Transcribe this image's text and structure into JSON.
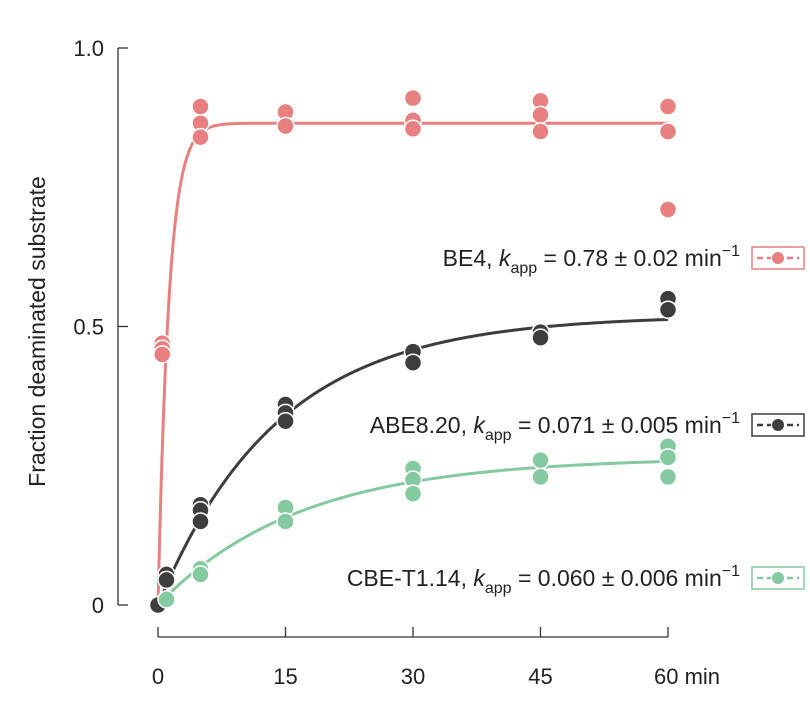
{
  "chart_data": {
    "type": "scatter",
    "title": "",
    "ylabel": "Fraction deaminated substrate",
    "xlabel": "",
    "x_unit": "min",
    "xlim": [
      0,
      60
    ],
    "ylim": [
      0,
      1.0
    ],
    "x_ticks": [
      0,
      15,
      30,
      45,
      60
    ],
    "x_tick_labels": [
      "0",
      "15",
      "30",
      "45",
      "60 min"
    ],
    "y_ticks": [
      0,
      0.5,
      1.0
    ],
    "y_tick_labels": [
      "0",
      "0.5",
      "1.0"
    ],
    "grid": false,
    "legend_position": "right, inline with curves",
    "series": [
      {
        "name": "BE4",
        "kapp_label": "BE4, ",
        "kapp_value": " = 0.78 ± 0.02 min",
        "color": "#e88080",
        "k": 0.78,
        "plateau": 0.865,
        "points": [
          {
            "x": 0,
            "y": 0.0
          },
          {
            "x": 0.5,
            "y": 0.47
          },
          {
            "x": 0.5,
            "y": 0.46
          },
          {
            "x": 0.5,
            "y": 0.45
          },
          {
            "x": 5,
            "y": 0.895
          },
          {
            "x": 5,
            "y": 0.865
          },
          {
            "x": 5,
            "y": 0.84
          },
          {
            "x": 15,
            "y": 0.885
          },
          {
            "x": 15,
            "y": 0.86
          },
          {
            "x": 30,
            "y": 0.91
          },
          {
            "x": 30,
            "y": 0.87
          },
          {
            "x": 30,
            "y": 0.855
          },
          {
            "x": 45,
            "y": 0.905
          },
          {
            "x": 45,
            "y": 0.88
          },
          {
            "x": 45,
            "y": 0.85
          },
          {
            "x": 60,
            "y": 0.895
          },
          {
            "x": 60,
            "y": 0.85
          },
          {
            "x": 60,
            "y": 0.71
          }
        ]
      },
      {
        "name": "ABE8.20",
        "kapp_label": "ABE8.20, ",
        "kapp_value": " = 0.071 ± 0.005 min",
        "color": "#3d3d3d",
        "k": 0.071,
        "plateau": 0.52,
        "points": [
          {
            "x": 0,
            "y": 0.0
          },
          {
            "x": 1,
            "y": 0.055
          },
          {
            "x": 1,
            "y": 0.045
          },
          {
            "x": 5,
            "y": 0.18
          },
          {
            "x": 5,
            "y": 0.17
          },
          {
            "x": 5,
            "y": 0.15
          },
          {
            "x": 15,
            "y": 0.36
          },
          {
            "x": 15,
            "y": 0.345
          },
          {
            "x": 15,
            "y": 0.33
          },
          {
            "x": 30,
            "y": 0.455
          },
          {
            "x": 30,
            "y": 0.435
          },
          {
            "x": 45,
            "y": 0.49
          },
          {
            "x": 45,
            "y": 0.48
          },
          {
            "x": 60,
            "y": 0.55
          },
          {
            "x": 60,
            "y": 0.53
          }
        ]
      },
      {
        "name": "CBE-T1.14",
        "kapp_label": "CBE-T1.14, ",
        "kapp_value": " = 0.060 ± 0.006 min",
        "color": "#85c9a0",
        "k": 0.06,
        "plateau": 0.265,
        "points": [
          {
            "x": 1,
            "y": 0.01
          },
          {
            "x": 5,
            "y": 0.065
          },
          {
            "x": 5,
            "y": 0.055
          },
          {
            "x": 15,
            "y": 0.175
          },
          {
            "x": 15,
            "y": 0.15
          },
          {
            "x": 30,
            "y": 0.245
          },
          {
            "x": 30,
            "y": 0.225
          },
          {
            "x": 30,
            "y": 0.2
          },
          {
            "x": 45,
            "y": 0.26
          },
          {
            "x": 45,
            "y": 0.23
          },
          {
            "x": 60,
            "y": 0.285
          },
          {
            "x": 60,
            "y": 0.265
          },
          {
            "x": 60,
            "y": 0.23
          }
        ]
      }
    ],
    "kapp_symbol": "k",
    "kapp_subscript": "app",
    "kapp_superscript": "−1"
  }
}
